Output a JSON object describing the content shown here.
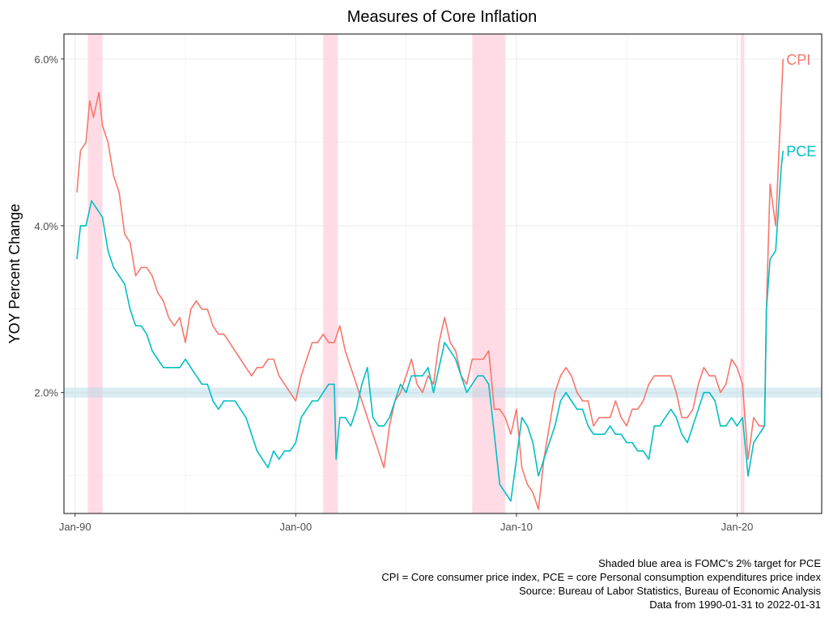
{
  "chart_data": {
    "type": "line",
    "title": "Measures of Core Inflation",
    "xlabel": "",
    "ylabel": "YOY Percent Change",
    "x_ticks": [
      "1990-01-01",
      "2000-01-01",
      "2010-01-01",
      "2020-01-01"
    ],
    "x_tick_labels": [
      "Jan-90",
      "Jan-00",
      "Jan-10",
      "Jan-20"
    ],
    "y_ticks": [
      2,
      4,
      6
    ],
    "y_tick_labels": [
      "2.0%",
      "4.0%",
      "6.0%"
    ],
    "ylim": [
      0.55,
      6.3
    ],
    "xlim": [
      "1989-07-01",
      "2023-11-01"
    ],
    "grid": true,
    "target_band": {
      "label": "FOMC 2% target for PCE",
      "y": [
        1.94,
        2.06
      ],
      "color": "#add8e6"
    },
    "recessions": {
      "color": "#ffd6e0",
      "periods": [
        {
          "start": "1990-07-31",
          "end": "1991-03-31"
        },
        {
          "start": "2001-03-31",
          "end": "2001-11-30"
        },
        {
          "start": "2007-12-31",
          "end": "2009-06-30"
        },
        {
          "start": "2020-02-29",
          "end": "2020-04-30"
        }
      ]
    },
    "series": [
      {
        "name": "CPI",
        "color": "#f8766d",
        "end_label": "CPI",
        "points": [
          [
            "1990-01-31",
            4.4
          ],
          [
            "1990-03-31",
            4.9
          ],
          [
            "1990-06-30",
            5.0
          ],
          [
            "1990-08-31",
            5.5
          ],
          [
            "1990-10-31",
            5.3
          ],
          [
            "1990-12-31",
            5.5
          ],
          [
            "1991-01-31",
            5.6
          ],
          [
            "1991-03-31",
            5.2
          ],
          [
            "1991-06-30",
            5.0
          ],
          [
            "1991-09-30",
            4.6
          ],
          [
            "1991-12-31",
            4.4
          ],
          [
            "1992-03-31",
            3.9
          ],
          [
            "1992-06-30",
            3.8
          ],
          [
            "1992-09-30",
            3.4
          ],
          [
            "1992-12-31",
            3.5
          ],
          [
            "1993-03-31",
            3.5
          ],
          [
            "1993-06-30",
            3.4
          ],
          [
            "1993-09-30",
            3.2
          ],
          [
            "1993-12-31",
            3.1
          ],
          [
            "1994-03-31",
            2.9
          ],
          [
            "1994-06-30",
            2.8
          ],
          [
            "1994-09-30",
            2.9
          ],
          [
            "1994-12-31",
            2.6
          ],
          [
            "1995-03-31",
            3.0
          ],
          [
            "1995-06-30",
            3.1
          ],
          [
            "1995-09-30",
            3.0
          ],
          [
            "1995-12-31",
            3.0
          ],
          [
            "1996-03-31",
            2.8
          ],
          [
            "1996-06-30",
            2.7
          ],
          [
            "1996-09-30",
            2.7
          ],
          [
            "1996-12-31",
            2.6
          ],
          [
            "1997-03-31",
            2.5
          ],
          [
            "1997-06-30",
            2.4
          ],
          [
            "1997-09-30",
            2.3
          ],
          [
            "1997-12-31",
            2.2
          ],
          [
            "1998-03-31",
            2.3
          ],
          [
            "1998-06-30",
            2.3
          ],
          [
            "1998-09-30",
            2.4
          ],
          [
            "1998-12-31",
            2.4
          ],
          [
            "1999-03-31",
            2.2
          ],
          [
            "1999-06-30",
            2.1
          ],
          [
            "1999-09-30",
            2.0
          ],
          [
            "1999-12-31",
            1.9
          ],
          [
            "2000-03-31",
            2.2
          ],
          [
            "2000-06-30",
            2.4
          ],
          [
            "2000-09-30",
            2.6
          ],
          [
            "2000-12-31",
            2.6
          ],
          [
            "2001-03-31",
            2.7
          ],
          [
            "2001-06-30",
            2.6
          ],
          [
            "2001-09-30",
            2.6
          ],
          [
            "2001-12-31",
            2.8
          ],
          [
            "2002-03-31",
            2.5
          ],
          [
            "2002-06-30",
            2.3
          ],
          [
            "2002-09-30",
            2.1
          ],
          [
            "2002-12-31",
            1.9
          ],
          [
            "2003-03-31",
            1.7
          ],
          [
            "2003-06-30",
            1.5
          ],
          [
            "2003-09-30",
            1.3
          ],
          [
            "2003-12-31",
            1.1
          ],
          [
            "2004-03-31",
            1.6
          ],
          [
            "2004-06-30",
            1.9
          ],
          [
            "2004-09-30",
            2.0
          ],
          [
            "2004-12-31",
            2.2
          ],
          [
            "2005-03-31",
            2.4
          ],
          [
            "2005-06-30",
            2.1
          ],
          [
            "2005-09-30",
            2.0
          ],
          [
            "2005-12-31",
            2.2
          ],
          [
            "2006-03-31",
            2.1
          ],
          [
            "2006-06-30",
            2.6
          ],
          [
            "2006-09-30",
            2.9
          ],
          [
            "2006-12-31",
            2.6
          ],
          [
            "2007-03-31",
            2.5
          ],
          [
            "2007-06-30",
            2.2
          ],
          [
            "2007-09-30",
            2.1
          ],
          [
            "2007-12-31",
            2.4
          ],
          [
            "2008-03-31",
            2.4
          ],
          [
            "2008-06-30",
            2.4
          ],
          [
            "2008-09-30",
            2.5
          ],
          [
            "2008-12-31",
            1.8
          ],
          [
            "2009-03-31",
            1.8
          ],
          [
            "2009-06-30",
            1.7
          ],
          [
            "2009-09-30",
            1.5
          ],
          [
            "2009-12-31",
            1.8
          ],
          [
            "2010-03-31",
            1.1
          ],
          [
            "2010-06-30",
            0.9
          ],
          [
            "2010-09-30",
            0.8
          ],
          [
            "2010-12-31",
            0.6
          ],
          [
            "2011-03-31",
            1.2
          ],
          [
            "2011-06-30",
            1.6
          ],
          [
            "2011-09-30",
            2.0
          ],
          [
            "2011-12-31",
            2.2
          ],
          [
            "2012-03-31",
            2.3
          ],
          [
            "2012-06-30",
            2.2
          ],
          [
            "2012-09-30",
            2.0
          ],
          [
            "2012-12-31",
            1.9
          ],
          [
            "2013-03-31",
            1.9
          ],
          [
            "2013-06-30",
            1.6
          ],
          [
            "2013-09-30",
            1.7
          ],
          [
            "2013-12-31",
            1.7
          ],
          [
            "2014-03-31",
            1.7
          ],
          [
            "2014-06-30",
            1.9
          ],
          [
            "2014-09-30",
            1.7
          ],
          [
            "2014-12-31",
            1.6
          ],
          [
            "2015-03-31",
            1.8
          ],
          [
            "2015-06-30",
            1.8
          ],
          [
            "2015-09-30",
            1.9
          ],
          [
            "2015-12-31",
            2.1
          ],
          [
            "2016-03-31",
            2.2
          ],
          [
            "2016-06-30",
            2.2
          ],
          [
            "2016-09-30",
            2.2
          ],
          [
            "2016-12-31",
            2.2
          ],
          [
            "2017-03-31",
            2.0
          ],
          [
            "2017-06-30",
            1.7
          ],
          [
            "2017-09-30",
            1.7
          ],
          [
            "2017-12-31",
            1.8
          ],
          [
            "2018-03-31",
            2.1
          ],
          [
            "2018-06-30",
            2.3
          ],
          [
            "2018-09-30",
            2.2
          ],
          [
            "2018-12-31",
            2.2
          ],
          [
            "2019-03-31",
            2.0
          ],
          [
            "2019-06-30",
            2.1
          ],
          [
            "2019-09-30",
            2.4
          ],
          [
            "2019-12-31",
            2.3
          ],
          [
            "2020-03-31",
            2.1
          ],
          [
            "2020-06-30",
            1.2
          ],
          [
            "2020-09-30",
            1.7
          ],
          [
            "2020-12-31",
            1.6
          ],
          [
            "2021-03-31",
            1.6
          ],
          [
            "2021-04-30",
            3.0
          ],
          [
            "2021-06-30",
            4.5
          ],
          [
            "2021-09-30",
            4.0
          ],
          [
            "2021-12-31",
            5.5
          ],
          [
            "2022-01-31",
            6.0
          ]
        ]
      },
      {
        "name": "PCE",
        "color": "#00bfc4",
        "end_label": "PCE",
        "points": [
          [
            "1990-01-31",
            3.6
          ],
          [
            "1990-03-31",
            4.0
          ],
          [
            "1990-06-30",
            4.0
          ],
          [
            "1990-09-30",
            4.3
          ],
          [
            "1990-12-31",
            4.2
          ],
          [
            "1991-03-31",
            4.1
          ],
          [
            "1991-06-30",
            3.7
          ],
          [
            "1991-09-30",
            3.5
          ],
          [
            "1991-12-31",
            3.4
          ],
          [
            "1992-03-31",
            3.3
          ],
          [
            "1992-06-30",
            3.0
          ],
          [
            "1992-09-30",
            2.8
          ],
          [
            "1992-12-31",
            2.8
          ],
          [
            "1993-03-31",
            2.7
          ],
          [
            "1993-06-30",
            2.5
          ],
          [
            "1993-09-30",
            2.4
          ],
          [
            "1993-12-31",
            2.3
          ],
          [
            "1994-03-31",
            2.3
          ],
          [
            "1994-06-30",
            2.3
          ],
          [
            "1994-09-30",
            2.3
          ],
          [
            "1994-12-31",
            2.4
          ],
          [
            "1995-03-31",
            2.3
          ],
          [
            "1995-06-30",
            2.2
          ],
          [
            "1995-09-30",
            2.1
          ],
          [
            "1995-12-31",
            2.1
          ],
          [
            "1996-03-31",
            1.9
          ],
          [
            "1996-06-30",
            1.8
          ],
          [
            "1996-09-30",
            1.9
          ],
          [
            "1996-12-31",
            1.9
          ],
          [
            "1997-03-31",
            1.9
          ],
          [
            "1997-06-30",
            1.8
          ],
          [
            "1997-09-30",
            1.7
          ],
          [
            "1997-12-31",
            1.5
          ],
          [
            "1998-03-31",
            1.3
          ],
          [
            "1998-06-30",
            1.2
          ],
          [
            "1998-09-30",
            1.1
          ],
          [
            "1998-12-31",
            1.3
          ],
          [
            "1999-03-31",
            1.2
          ],
          [
            "1999-06-30",
            1.3
          ],
          [
            "1999-09-30",
            1.3
          ],
          [
            "1999-12-31",
            1.4
          ],
          [
            "2000-03-31",
            1.7
          ],
          [
            "2000-06-30",
            1.8
          ],
          [
            "2000-09-30",
            1.9
          ],
          [
            "2000-12-31",
            1.9
          ],
          [
            "2001-03-31",
            2.0
          ],
          [
            "2001-06-30",
            2.1
          ],
          [
            "2001-09-30",
            2.1
          ],
          [
            "2001-10-31",
            1.2
          ],
          [
            "2001-12-31",
            1.7
          ],
          [
            "2002-03-31",
            1.7
          ],
          [
            "2002-06-30",
            1.6
          ],
          [
            "2002-09-30",
            1.8
          ],
          [
            "2002-12-31",
            2.1
          ],
          [
            "2003-03-31",
            2.3
          ],
          [
            "2003-06-30",
            1.7
          ],
          [
            "2003-09-30",
            1.6
          ],
          [
            "2003-12-31",
            1.6
          ],
          [
            "2004-03-31",
            1.7
          ],
          [
            "2004-06-30",
            1.9
          ],
          [
            "2004-09-30",
            2.1
          ],
          [
            "2004-12-31",
            2.0
          ],
          [
            "2005-03-31",
            2.2
          ],
          [
            "2005-06-30",
            2.2
          ],
          [
            "2005-09-30",
            2.2
          ],
          [
            "2005-12-31",
            2.3
          ],
          [
            "2006-03-31",
            2.0
          ],
          [
            "2006-06-30",
            2.3
          ],
          [
            "2006-09-30",
            2.6
          ],
          [
            "2006-12-31",
            2.5
          ],
          [
            "2007-03-31",
            2.4
          ],
          [
            "2007-06-30",
            2.2
          ],
          [
            "2007-09-30",
            2.0
          ],
          [
            "2007-12-31",
            2.1
          ],
          [
            "2008-03-31",
            2.2
          ],
          [
            "2008-06-30",
            2.2
          ],
          [
            "2008-09-30",
            2.1
          ],
          [
            "2008-12-31",
            1.5
          ],
          [
            "2009-03-31",
            0.9
          ],
          [
            "2009-06-30",
            0.8
          ],
          [
            "2009-09-30",
            0.7
          ],
          [
            "2009-12-31",
            1.2
          ],
          [
            "2010-03-31",
            1.7
          ],
          [
            "2010-06-30",
            1.6
          ],
          [
            "2010-09-30",
            1.4
          ],
          [
            "2010-12-31",
            1.0
          ],
          [
            "2011-03-31",
            1.2
          ],
          [
            "2011-06-30",
            1.4
          ],
          [
            "2011-09-30",
            1.6
          ],
          [
            "2011-12-31",
            1.9
          ],
          [
            "2012-03-31",
            2.0
          ],
          [
            "2012-06-30",
            1.9
          ],
          [
            "2012-09-30",
            1.8
          ],
          [
            "2012-12-31",
            1.8
          ],
          [
            "2013-03-31",
            1.6
          ],
          [
            "2013-06-30",
            1.5
          ],
          [
            "2013-09-30",
            1.5
          ],
          [
            "2013-12-31",
            1.5
          ],
          [
            "2014-03-31",
            1.6
          ],
          [
            "2014-06-30",
            1.5
          ],
          [
            "2014-09-30",
            1.5
          ],
          [
            "2014-12-31",
            1.4
          ],
          [
            "2015-03-31",
            1.4
          ],
          [
            "2015-06-30",
            1.3
          ],
          [
            "2015-09-30",
            1.3
          ],
          [
            "2015-12-31",
            1.2
          ],
          [
            "2016-03-31",
            1.6
          ],
          [
            "2016-06-30",
            1.6
          ],
          [
            "2016-09-30",
            1.7
          ],
          [
            "2016-12-31",
            1.8
          ],
          [
            "2017-03-31",
            1.7
          ],
          [
            "2017-06-30",
            1.5
          ],
          [
            "2017-09-30",
            1.4
          ],
          [
            "2017-12-31",
            1.6
          ],
          [
            "2018-03-31",
            1.8
          ],
          [
            "2018-06-30",
            2.0
          ],
          [
            "2018-09-30",
            2.0
          ],
          [
            "2018-12-31",
            1.9
          ],
          [
            "2019-03-31",
            1.6
          ],
          [
            "2019-06-30",
            1.6
          ],
          [
            "2019-09-30",
            1.7
          ],
          [
            "2019-12-31",
            1.6
          ],
          [
            "2020-03-31",
            1.7
          ],
          [
            "2020-06-30",
            1.0
          ],
          [
            "2020-09-30",
            1.4
          ],
          [
            "2020-12-31",
            1.5
          ],
          [
            "2021-03-31",
            1.6
          ],
          [
            "2021-04-30",
            3.0
          ],
          [
            "2021-06-30",
            3.6
          ],
          [
            "2021-09-30",
            3.7
          ],
          [
            "2021-12-31",
            4.7
          ],
          [
            "2022-01-31",
            4.9
          ]
        ]
      }
    ]
  },
  "captions": [
    "Shaded blue area is FOMC's 2% target for PCE",
    "CPI = Core consumer price index, PCE = core Personal consumption expenditures price index",
    "Source: Bureau of Labor Statistics, Bureau of Economic Analysis",
    "Data from 1990-01-31 to 2022-01-31"
  ]
}
